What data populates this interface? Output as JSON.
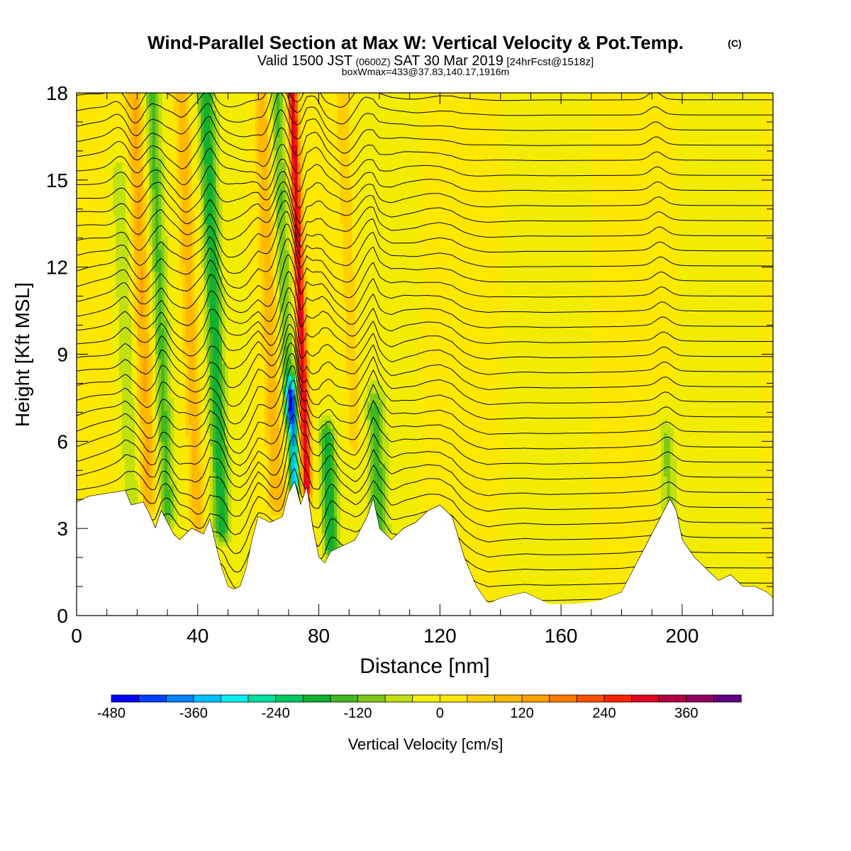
{
  "title": {
    "main": "Wind-Parallel Section at Max W: Vertical Velocity & Pot.Temp.",
    "copyright": "(C)",
    "valid_prefix": "Valid 1500 JST",
    "valid_utc": "(0600Z)",
    "valid_date": "SAT 30 Mar 2019",
    "forecast": "[24hrFcst@1518z]",
    "boxinfo": "boxWmax=433@37.83,140.17,1916m"
  },
  "colors": {
    "background": "#ffffff",
    "terrain": "#ffffff",
    "contour": "#000000",
    "colorbar_bins": [
      "#0000ff",
      "#0040ff",
      "#0080ff",
      "#00c0ff",
      "#00f0f0",
      "#00e0a0",
      "#00c860",
      "#10b030",
      "#40b820",
      "#80c818",
      "#c0e010",
      "#f0f000",
      "#ffe800",
      "#ffd000",
      "#ffb800",
      "#ffa000",
      "#ff7800",
      "#ff5000",
      "#ff2000",
      "#e00020",
      "#b00040",
      "#900060",
      "#600080"
    ]
  },
  "chart_data": {
    "type": "heatmap",
    "xlabel": "Distance [nm]",
    "ylabel": "Height [Kft MSL]",
    "xlim": [
      0,
      230
    ],
    "ylim": [
      0,
      18
    ],
    "xticks": [
      0,
      40,
      80,
      120,
      160,
      200
    ],
    "yticks": [
      0,
      3,
      6,
      9,
      12,
      15,
      18
    ],
    "field": "Vertical Velocity",
    "contour_field": "Potential Temperature",
    "colorbar": {
      "label": "Vertical Velocity [cm/s]",
      "min": -480,
      "max": 420,
      "step": 40,
      "tick_values": [
        -480,
        -360,
        -240,
        -120,
        0,
        120,
        240,
        360
      ],
      "tick_labels": [
        "-480",
        "-360",
        "-240",
        "-120",
        "0",
        "120",
        "240",
        "360"
      ]
    },
    "terrain_profile": {
      "x": [
        0,
        4,
        10,
        16,
        18,
        22,
        24,
        26,
        28,
        32,
        34,
        38,
        42,
        44,
        46,
        48,
        50,
        52,
        54,
        56,
        58,
        60,
        64,
        68,
        70,
        72,
        74,
        76,
        78,
        80,
        82,
        84,
        88,
        92,
        96,
        98,
        100,
        104,
        108,
        112,
        116,
        120,
        124,
        128,
        132,
        136,
        140,
        148,
        156,
        164,
        172,
        180,
        184,
        188,
        192,
        196,
        198,
        200,
        204,
        208,
        212,
        216,
        220,
        224,
        228,
        230
      ],
      "height_kft": [
        3.9,
        4.1,
        4.2,
        4.3,
        3.8,
        3.9,
        3.5,
        3.0,
        3.6,
        2.8,
        2.6,
        3.0,
        2.8,
        3.3,
        2.4,
        1.6,
        1.0,
        0.9,
        1.0,
        1.6,
        2.6,
        3.4,
        3.2,
        3.4,
        4.2,
        4.6,
        3.8,
        4.4,
        3.0,
        2.0,
        1.8,
        2.2,
        2.4,
        2.6,
        3.4,
        4.0,
        3.0,
        2.6,
        3.0,
        3.2,
        3.6,
        3.8,
        3.4,
        2.0,
        1.0,
        0.4,
        0.6,
        0.8,
        0.4,
        0.4,
        0.5,
        0.8,
        1.6,
        2.4,
        3.2,
        4.0,
        3.6,
        2.6,
        2.0,
        1.6,
        1.2,
        1.4,
        1.0,
        1.0,
        0.8,
        0.6
      ]
    },
    "vertical_velocity_features_cm_s": [
      {
        "kind": "updraft",
        "x": 76,
        "height_range": [
          4.5,
          18
        ],
        "value": 300
      },
      {
        "kind": "downdraft",
        "x": 72,
        "height_range": [
          4.5,
          7.5
        ],
        "value": -380
      },
      {
        "kind": "downdraft",
        "x": 84,
        "height_range": [
          2.4,
          6
        ],
        "value": -200
      },
      {
        "kind": "downdraft",
        "x": 70,
        "height_range": [
          7,
          18
        ],
        "value": -140
      },
      {
        "kind": "updraft",
        "x": 66,
        "height_range": [
          4,
          18
        ],
        "value": 100
      },
      {
        "kind": "downdraft",
        "x": 48,
        "height_range": [
          3,
          18
        ],
        "value": -180
      },
      {
        "kind": "updraft",
        "x": 40,
        "height_range": [
          3,
          18
        ],
        "value": 110
      },
      {
        "kind": "downdraft",
        "x": 30,
        "height_range": [
          3.5,
          18
        ],
        "value": -130
      },
      {
        "kind": "updraft",
        "x": 24,
        "height_range": [
          4,
          18
        ],
        "value": 120
      },
      {
        "kind": "downdraft",
        "x": 18,
        "height_range": [
          4,
          15
        ],
        "value": -80
      },
      {
        "kind": "downdraft",
        "x": 100,
        "height_range": [
          3,
          7
        ],
        "value": -120
      },
      {
        "kind": "updraft",
        "x": 92,
        "height_range": [
          6,
          18
        ],
        "value": 80
      },
      {
        "kind": "downdraft",
        "x": 196,
        "height_range": [
          3,
          6
        ],
        "value": -90
      }
    ]
  }
}
